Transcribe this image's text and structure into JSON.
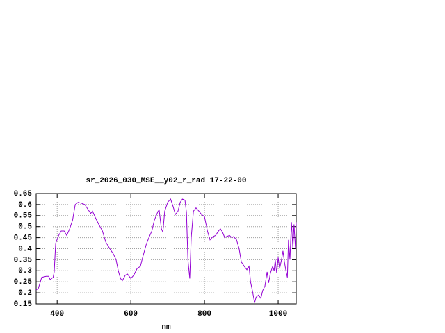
{
  "chart_data": {
    "type": "line",
    "title": "sr_2026_030_MSE__y02_r_rad 17-22-00",
    "x_label": "nm",
    "xlim": [
      343,
      1049
    ],
    "ylim": [
      0.15,
      0.65
    ],
    "xticks": [
      400,
      600,
      800,
      1000
    ],
    "yticks": [
      0.15,
      0.2,
      0.25,
      0.3,
      0.35,
      0.4,
      0.45,
      0.5,
      0.55,
      0.6,
      0.65
    ],
    "grid": true,
    "series": [
      {
        "color": "#9400d3",
        "x": [
          343,
          349,
          358,
          370,
          377,
          381,
          389,
          392,
          396,
          404,
          411,
          419,
          426,
          434,
          442,
          449,
          457,
          468,
          475,
          483,
          491,
          496,
          504,
          513,
          523,
          532,
          543,
          553,
          560,
          566,
          572,
          577,
          585,
          591,
          600,
          608,
          617,
          626,
          632,
          642,
          649,
          657,
          664,
          674,
          677,
          683,
          687,
          692,
          700,
          708,
          715,
          721,
          728,
          734,
          740,
          747,
          751,
          755,
          760,
          764,
          770,
          777,
          785,
          792,
          800,
          808,
          815,
          823,
          830,
          838,
          843,
          849,
          855,
          860,
          868,
          874,
          879,
          887,
          894,
          900,
          908,
          915,
          921,
          925,
          930,
          936,
          940,
          947,
          953,
          958,
          964,
          970,
          974,
          979,
          985,
          989,
          992,
          996,
          1000,
          1004,
          1009,
          1013,
          1017,
          1021,
          1025,
          1028,
          1032,
          1036,
          1040,
          1043,
          1047,
          1049
        ],
        "values": [
          0.213,
          0.22,
          0.27,
          0.275,
          0.275,
          0.26,
          0.27,
          0.295,
          0.425,
          0.46,
          0.48,
          0.48,
          0.46,
          0.49,
          0.53,
          0.6,
          0.61,
          0.605,
          0.6,
          0.58,
          0.56,
          0.57,
          0.54,
          0.51,
          0.48,
          0.43,
          0.4,
          0.375,
          0.35,
          0.3,
          0.265,
          0.255,
          0.28,
          0.285,
          0.265,
          0.28,
          0.31,
          0.32,
          0.36,
          0.42,
          0.45,
          0.48,
          0.53,
          0.57,
          0.575,
          0.49,
          0.475,
          0.57,
          0.61,
          0.625,
          0.59,
          0.555,
          0.57,
          0.61,
          0.625,
          0.62,
          0.565,
          0.35,
          0.265,
          0.45,
          0.57,
          0.585,
          0.57,
          0.555,
          0.545,
          0.48,
          0.44,
          0.455,
          0.46,
          0.48,
          0.49,
          0.475,
          0.45,
          0.455,
          0.46,
          0.45,
          0.455,
          0.44,
          0.4,
          0.34,
          0.32,
          0.305,
          0.32,
          0.25,
          0.21,
          0.155,
          0.18,
          0.19,
          0.175,
          0.21,
          0.23,
          0.295,
          0.245,
          0.29,
          0.32,
          0.3,
          0.35,
          0.29,
          0.36,
          0.31,
          0.35,
          0.39,
          0.34,
          0.3,
          0.27,
          0.44,
          0.35,
          0.52,
          0.4,
          0.51,
          0.4,
          0.52
        ]
      }
    ]
  }
}
